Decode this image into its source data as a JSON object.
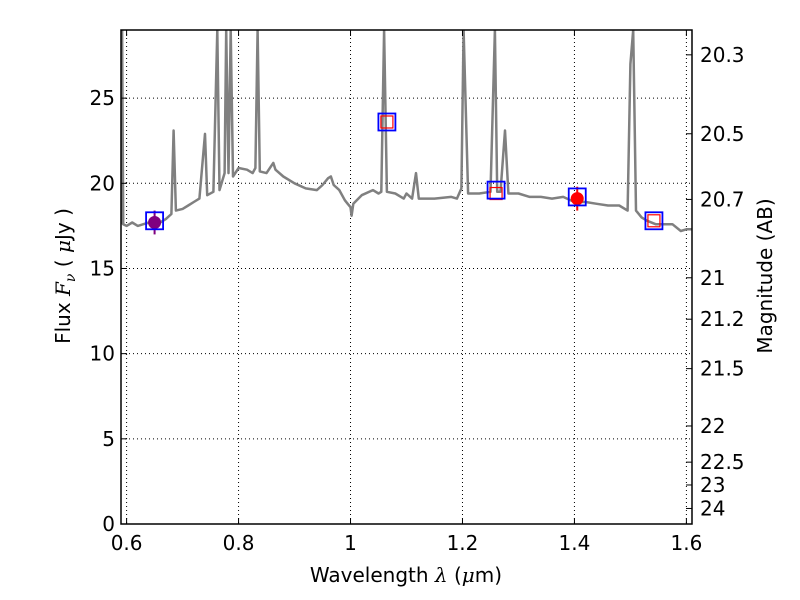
{
  "chart_data": {
    "type": "line",
    "xlabel": "Wavelength",
    "xlabel_symbol": "λ",
    "xlabel_unit_open": " (",
    "xlabel_unit_mu": "μ",
    "xlabel_unit_rest": "m)",
    "ylabel": "Flux",
    "ylabel_symbol": "F",
    "ylabel_subscript": "ν",
    "ylabel_unit_open": " ( ",
    "ylabel_unit_mu": "μ",
    "ylabel_unit_rest": "Jy )",
    "y2label": "Magnitude (AB)",
    "xlim": [
      0.59,
      1.61
    ],
    "ylim": [
      0,
      29
    ],
    "grid": true,
    "x_ticks": [
      0.6,
      0.8,
      1.0,
      1.2,
      1.4,
      1.6
    ],
    "x_tick_labels": [
      "0.6",
      "0.8",
      "1",
      "1.2",
      "1.4",
      "1.6"
    ],
    "y_ticks": [
      0,
      5,
      10,
      15,
      20,
      25
    ],
    "y_tick_labels": [
      "0",
      "5",
      "10",
      "15",
      "20",
      "25"
    ],
    "y2_ticks": [
      20.3,
      20.5,
      20.7,
      21,
      21.2,
      21.5,
      22,
      22.5,
      23,
      24
    ],
    "y2_tick_labels": [
      "20.3",
      "20.5",
      "20.7",
      "21",
      "21.2",
      "21.5",
      "22",
      "22.5",
      "23",
      "24"
    ],
    "spectrum": {
      "color": "#808080",
      "points": [
        [
          0.59,
          17.6
        ],
        [
          0.592,
          29
        ],
        [
          0.594,
          17.6
        ],
        [
          0.6,
          17.5
        ],
        [
          0.61,
          17.7
        ],
        [
          0.62,
          17.5
        ],
        [
          0.63,
          17.6
        ],
        [
          0.64,
          17.7
        ],
        [
          0.65,
          17.8
        ],
        [
          0.66,
          17.7
        ],
        [
          0.67,
          17.9
        ],
        [
          0.68,
          18.2
        ],
        [
          0.684,
          23.1
        ],
        [
          0.688,
          18.4
        ],
        [
          0.7,
          18.5
        ],
        [
          0.71,
          18.7
        ],
        [
          0.72,
          18.9
        ],
        [
          0.73,
          19.1
        ],
        [
          0.74,
          22.9
        ],
        [
          0.744,
          19.3
        ],
        [
          0.755,
          19.5
        ],
        [
          0.762,
          29
        ],
        [
          0.766,
          19.6
        ],
        [
          0.775,
          20.6
        ],
        [
          0.778,
          29
        ],
        [
          0.782,
          20.6
        ],
        [
          0.786,
          29
        ],
        [
          0.79,
          20.4
        ],
        [
          0.8,
          20.9
        ],
        [
          0.815,
          20.8
        ],
        [
          0.825,
          20.6
        ],
        [
          0.83,
          20.9
        ],
        [
          0.834,
          29
        ],
        [
          0.838,
          20.7
        ],
        [
          0.85,
          20.6
        ],
        [
          0.858,
          21.0
        ],
        [
          0.862,
          21.2
        ],
        [
          0.866,
          20.8
        ],
        [
          0.88,
          20.4
        ],
        [
          0.9,
          20.0
        ],
        [
          0.92,
          19.7
        ],
        [
          0.94,
          19.6
        ],
        [
          0.95,
          19.9
        ],
        [
          0.96,
          20.3
        ],
        [
          0.965,
          20.4
        ],
        [
          0.97,
          19.9
        ],
        [
          0.98,
          19.6
        ],
        [
          0.99,
          19.0
        ],
        [
          0.995,
          18.8
        ],
        [
          1.0,
          18.6
        ],
        [
          1.002,
          18.1
        ],
        [
          1.005,
          18.8
        ],
        [
          1.02,
          19.3
        ],
        [
          1.04,
          19.6
        ],
        [
          1.05,
          19.4
        ],
        [
          1.055,
          19.5
        ],
        [
          1.06,
          29
        ],
        [
          1.065,
          19.5
        ],
        [
          1.08,
          19.4
        ],
        [
          1.095,
          19.1
        ],
        [
          1.1,
          19.4
        ],
        [
          1.11,
          19.1
        ],
        [
          1.117,
          20.6
        ],
        [
          1.122,
          19.1
        ],
        [
          1.15,
          19.1
        ],
        [
          1.18,
          19.2
        ],
        [
          1.19,
          19.1
        ],
        [
          1.198,
          19.7
        ],
        [
          1.202,
          29
        ],
        [
          1.21,
          19.4
        ],
        [
          1.23,
          19.4
        ],
        [
          1.25,
          19.5
        ],
        [
          1.258,
          29
        ],
        [
          1.262,
          19.5
        ],
        [
          1.268,
          19.5
        ],
        [
          1.276,
          23.1
        ],
        [
          1.282,
          19.4
        ],
        [
          1.3,
          19.4
        ],
        [
          1.32,
          19.2
        ],
        [
          1.34,
          19.2
        ],
        [
          1.36,
          19.1
        ],
        [
          1.38,
          19.2
        ],
        [
          1.4,
          18.9
        ],
        [
          1.42,
          18.9
        ],
        [
          1.44,
          18.8
        ],
        [
          1.46,
          18.7
        ],
        [
          1.48,
          18.7
        ],
        [
          1.495,
          18.4
        ],
        [
          1.5,
          27.0
        ],
        [
          1.505,
          29
        ],
        [
          1.51,
          18.4
        ],
        [
          1.52,
          18.0
        ],
        [
          1.53,
          17.8
        ],
        [
          1.545,
          17.6
        ],
        [
          1.56,
          17.6
        ],
        [
          1.575,
          17.6
        ],
        [
          1.59,
          17.2
        ],
        [
          1.6,
          17.3
        ],
        [
          1.61,
          17.3
        ]
      ]
    },
    "photometry": [
      {
        "x": 0.65,
        "y": 17.7,
        "yerr": 0.7,
        "marker": "circle",
        "fill": "#800080",
        "stroke": "#800080"
      },
      {
        "x": 1.405,
        "y": 19.1,
        "yerr": 0.7,
        "marker": "circle",
        "fill": "#ff0000",
        "stroke": "#ff0000"
      }
    ],
    "model_points_blue": [
      {
        "x": 0.65,
        "y": 17.8
      },
      {
        "x": 1.065,
        "y": 23.6
      },
      {
        "x": 1.26,
        "y": 19.6
      },
      {
        "x": 1.405,
        "y": 19.2
      },
      {
        "x": 1.542,
        "y": 17.8
      }
    ],
    "model_points_red": [
      {
        "x": 1.065,
        "y": 23.6
      },
      {
        "x": 1.26,
        "y": 19.4
      },
      {
        "x": 1.542,
        "y": 17.8
      }
    ],
    "colors": {
      "blue": "#0000ff",
      "red": "#ff0000",
      "purple": "#800080",
      "spectrum": "#808080"
    }
  }
}
